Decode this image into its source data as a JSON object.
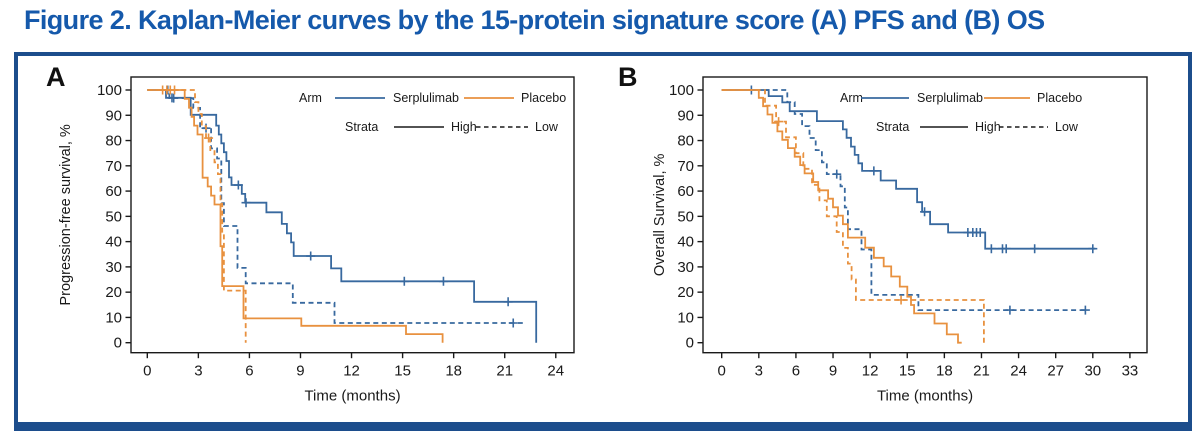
{
  "title": "Figure 2. Kaplan-Meier curves by the 15-protein signature score (A) PFS and (B) OS",
  "colors": {
    "serplulimab": "#38699f",
    "placebo": "#e8913f",
    "strata": "#1a1a1a",
    "title": "#1559ab",
    "border": "#1c4d8c",
    "axis": "#1a1a1a"
  },
  "legend": {
    "arm": "Arm",
    "serplulimab": "Serplulimab",
    "placebo": "Placebo",
    "strata": "Strata",
    "high": "High",
    "low": "Low"
  },
  "chart_data": [
    {
      "id": "A",
      "type": "line",
      "subtype": "kaplan-meier-step",
      "panel_label": "A",
      "xlabel": "Time (months)",
      "ylabel": "Progression-free survival, %",
      "xticks": [
        0,
        3,
        6,
        9,
        12,
        15,
        18,
        21,
        24
      ],
      "yticks": [
        0,
        10,
        20,
        30,
        40,
        50,
        60,
        70,
        80,
        90,
        100
      ],
      "xlim": [
        0,
        25.1
      ],
      "ylim": [
        0,
        100
      ],
      "grid": false,
      "legend_position": "inside-top-right",
      "series": [
        {
          "name": "Serplulimab High",
          "arm": "Serplulimab",
          "strata": "High",
          "color": "serplulimab",
          "dashed": false,
          "steps": [
            [
              0,
              100
            ],
            [
              1.1,
              96.9
            ],
            [
              2.55,
              90.2
            ],
            [
              4.05,
              85.9
            ],
            [
              4.2,
              82.4
            ],
            [
              4.35,
              78.9
            ],
            [
              4.5,
              75.4
            ],
            [
              4.65,
              71.9
            ],
            [
              4.8,
              65.4
            ],
            [
              4.95,
              62.4
            ],
            [
              5.55,
              58.9
            ],
            [
              5.75,
              55.4
            ],
            [
              7.0,
              51.6
            ],
            [
              7.9,
              47.0
            ],
            [
              8.2,
              43.3
            ],
            [
              8.45,
              39.7
            ],
            [
              8.6,
              34.3
            ],
            [
              10.8,
              29.4
            ],
            [
              11.4,
              24.3
            ],
            [
              19.2,
              16.2
            ],
            [
              22.85,
              0
            ]
          ],
          "end": 22.85,
          "censors": [
            [
              1.2,
              100
            ],
            [
              1.45,
              96.9
            ],
            [
              5.35,
              62.4
            ],
            [
              5.8,
              55.4
            ],
            [
              9.6,
              34.3
            ],
            [
              15.1,
              24.3
            ],
            [
              17.4,
              24.3
            ],
            [
              21.2,
              16.2
            ]
          ]
        },
        {
          "name": "Serplulimab Low",
          "arm": "Serplulimab",
          "strata": "Low",
          "color": "serplulimab",
          "dashed": true,
          "steps": [
            [
              0,
              100
            ],
            [
              1.3,
              96.8
            ],
            [
              2.7,
              92.9
            ],
            [
              3.1,
              84.9
            ],
            [
              3.75,
              76.9
            ],
            [
              4.1,
              72.9
            ],
            [
              4.35,
              55.2
            ],
            [
              4.5,
              46.2
            ],
            [
              5.3,
              29.6
            ],
            [
              5.78,
              23.5
            ],
            [
              8.55,
              15.8
            ],
            [
              11.0,
              7.8
            ]
          ],
          "end": 22.1,
          "censors": [
            [
              1.55,
              96.8
            ],
            [
              3.45,
              84.9
            ],
            [
              21.5,
              7.8
            ]
          ]
        },
        {
          "name": "Placebo High",
          "arm": "Placebo",
          "strata": "High",
          "color": "placebo",
          "dashed": false,
          "steps": [
            [
              0,
              100
            ],
            [
              2.2,
              96.5
            ],
            [
              2.45,
              93.0
            ],
            [
              2.6,
              89.4
            ],
            [
              2.75,
              85.9
            ],
            [
              2.95,
              82.4
            ],
            [
              3.25,
              65.3
            ],
            [
              3.55,
              61.8
            ],
            [
              3.75,
              58.2
            ],
            [
              3.95,
              54.7
            ],
            [
              4.3,
              38.2
            ],
            [
              4.4,
              22.4
            ],
            [
              5.65,
              9.6
            ],
            [
              9.05,
              6.7
            ],
            [
              15.2,
              3.4
            ],
            [
              17.35,
              0
            ]
          ],
          "end": 17.35,
          "censors": [
            [
              0.9,
              100
            ],
            [
              1.15,
              100
            ],
            [
              1.35,
              100
            ]
          ]
        },
        {
          "name": "Placebo Low",
          "arm": "Placebo",
          "strata": "Low",
          "color": "placebo",
          "dashed": true,
          "steps": [
            [
              0,
              100
            ],
            [
              2.8,
              95.2
            ],
            [
              3.0,
              90.5
            ],
            [
              3.2,
              85.7
            ],
            [
              3.45,
              81.0
            ],
            [
              3.7,
              76.2
            ],
            [
              3.95,
              71.4
            ],
            [
              4.15,
              66.7
            ],
            [
              4.3,
              55.0
            ],
            [
              4.4,
              43.0
            ],
            [
              4.5,
              20.6
            ],
            [
              5.78,
              0
            ]
          ],
          "end": 5.78,
          "censors": [
            [
              1.6,
              100
            ],
            [
              3.6,
              81.0
            ]
          ]
        }
      ]
    },
    {
      "id": "B",
      "type": "line",
      "subtype": "kaplan-meier-step",
      "panel_label": "B",
      "xlabel": "Time (months)",
      "ylabel": "Overall Survival, %",
      "xticks": [
        0,
        3,
        6,
        9,
        12,
        15,
        18,
        21,
        24,
        27,
        30,
        33
      ],
      "yticks": [
        0,
        10,
        20,
        30,
        40,
        50,
        60,
        70,
        80,
        90,
        100
      ],
      "xlim": [
        0,
        34.4
      ],
      "ylim": [
        0,
        100
      ],
      "grid": false,
      "legend_position": "inside-top-right",
      "series": [
        {
          "name": "Serplulimab High",
          "arm": "Serplulimab",
          "strata": "High",
          "color": "serplulimab",
          "dashed": false,
          "steps": [
            [
              0,
              100
            ],
            [
              3.8,
              97.6
            ],
            [
              4.9,
              95.1
            ],
            [
              5.5,
              91.6
            ],
            [
              7.7,
              87.7
            ],
            [
              9.8,
              84.4
            ],
            [
              10.1,
              81.1
            ],
            [
              10.45,
              77.6
            ],
            [
              10.75,
              74.3
            ],
            [
              11.05,
              71.0
            ],
            [
              11.35,
              68.0
            ],
            [
              12.85,
              64.2
            ],
            [
              14.1,
              60.9
            ],
            [
              15.8,
              55.6
            ],
            [
              16.2,
              51.8
            ],
            [
              16.85,
              46.9
            ],
            [
              18.3,
              43.6
            ],
            [
              21.3,
              37.2
            ]
          ],
          "end": 30.2,
          "censors": [
            [
              2.4,
              100
            ],
            [
              12.3,
              68.0
            ],
            [
              16.4,
              51.8
            ],
            [
              19.9,
              43.6
            ],
            [
              20.3,
              43.6
            ],
            [
              20.6,
              43.6
            ],
            [
              20.9,
              43.6
            ],
            [
              21.8,
              37.2
            ],
            [
              22.7,
              37.2
            ],
            [
              23.0,
              37.2
            ],
            [
              25.3,
              37.2
            ],
            [
              30.0,
              37.2
            ]
          ]
        },
        {
          "name": "Serplulimab Low",
          "arm": "Serplulimab",
          "strata": "Low",
          "color": "serplulimab",
          "dashed": true,
          "steps": [
            [
              0,
              100
            ],
            [
              5.3,
              95.2
            ],
            [
              5.9,
              90.5
            ],
            [
              6.5,
              85.7
            ],
            [
              7.1,
              81.0
            ],
            [
              7.6,
              76.2
            ],
            [
              8.1,
              71.4
            ],
            [
              8.5,
              66.7
            ],
            [
              9.6,
              61.9
            ],
            [
              9.95,
              53.5
            ],
            [
              10.2,
              44.9
            ],
            [
              11.3,
              36.9
            ],
            [
              12.1,
              18.9
            ],
            [
              15.9,
              12.9
            ]
          ],
          "end": 29.6,
          "censors": [
            [
              9.3,
              66.7
            ],
            [
              23.3,
              12.9
            ],
            [
              29.4,
              12.9
            ]
          ]
        },
        {
          "name": "Placebo High",
          "arm": "Placebo",
          "strata": "High",
          "color": "placebo",
          "dashed": false,
          "steps": [
            [
              0,
              100
            ],
            [
              3.0,
              96.9
            ],
            [
              3.35,
              93.6
            ],
            [
              3.7,
              90.3
            ],
            [
              4.1,
              87.0
            ],
            [
              4.5,
              83.6
            ],
            [
              4.9,
              80.3
            ],
            [
              5.35,
              77.0
            ],
            [
              5.9,
              73.6
            ],
            [
              6.35,
              70.3
            ],
            [
              6.7,
              67.0
            ],
            [
              7.4,
              63.6
            ],
            [
              7.8,
              60.3
            ],
            [
              8.6,
              57.0
            ],
            [
              9.0,
              53.6
            ],
            [
              9.4,
              50.3
            ],
            [
              9.8,
              46.9
            ],
            [
              10.2,
              41.6
            ],
            [
              11.6,
              37.6
            ],
            [
              12.3,
              33.6
            ],
            [
              13.1,
              30.2
            ],
            [
              13.7,
              26.2
            ],
            [
              14.4,
              22.2
            ],
            [
              15.0,
              18.2
            ],
            [
              15.3,
              14.9
            ],
            [
              15.55,
              11.6
            ],
            [
              17.2,
              7.6
            ],
            [
              18.2,
              3.3
            ],
            [
              19.1,
              0
            ]
          ],
          "end": 19.4,
          "censors": []
        },
        {
          "name": "Placebo Low",
          "arm": "Placebo",
          "strata": "Low",
          "color": "placebo",
          "dashed": true,
          "steps": [
            [
              0,
              100
            ],
            [
              3.5,
              93.8
            ],
            [
              4.4,
              87.5
            ],
            [
              5.2,
              81.3
            ],
            [
              6.0,
              75.0
            ],
            [
              6.6,
              68.8
            ],
            [
              7.3,
              62.5
            ],
            [
              7.9,
              56.3
            ],
            [
              8.5,
              50.0
            ],
            [
              9.3,
              43.8
            ],
            [
              9.8,
              37.5
            ],
            [
              10.2,
              31.3
            ],
            [
              10.5,
              25.0
            ],
            [
              10.85,
              16.9
            ],
            [
              21.2,
              0
            ]
          ],
          "end": 21.2,
          "censors": [
            [
              4.6,
              87.5
            ],
            [
              14.5,
              16.9
            ]
          ]
        }
      ]
    }
  ]
}
